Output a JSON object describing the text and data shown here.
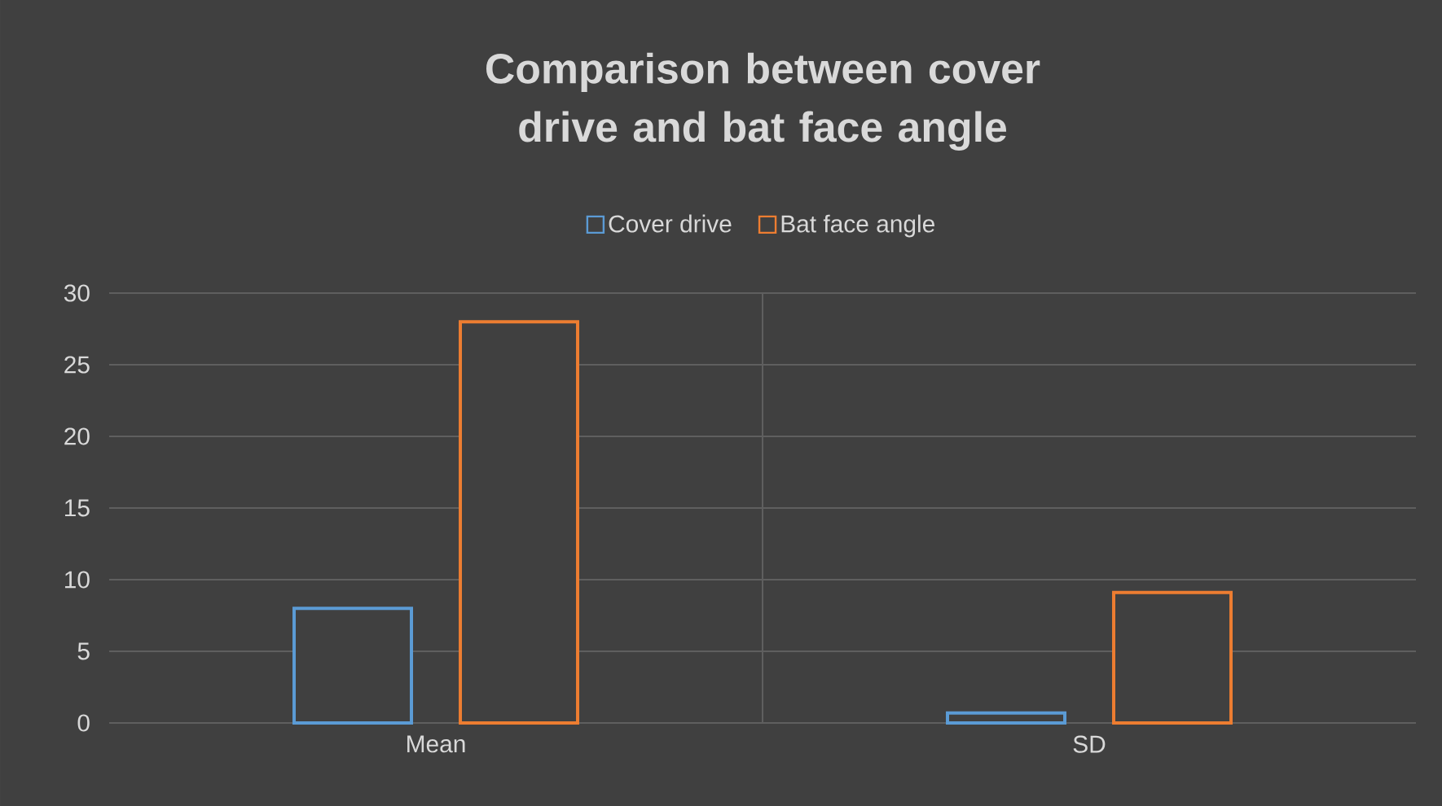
{
  "chart_data": {
    "type": "bar",
    "title": "Comparison between cover drive and bat face angle",
    "categories": [
      "Mean",
      "SD"
    ],
    "series": [
      {
        "name": "Cover drive",
        "color": "#5b9bd5",
        "values": [
          8,
          0.7
        ]
      },
      {
        "name": "Bat face angle",
        "color": "#ed7d31",
        "values": [
          28,
          9.1
        ]
      }
    ],
    "ylim": [
      0,
      30
    ],
    "yticks": [
      0,
      5,
      10,
      15,
      20,
      25,
      30
    ],
    "grid": true,
    "legend": "top"
  }
}
